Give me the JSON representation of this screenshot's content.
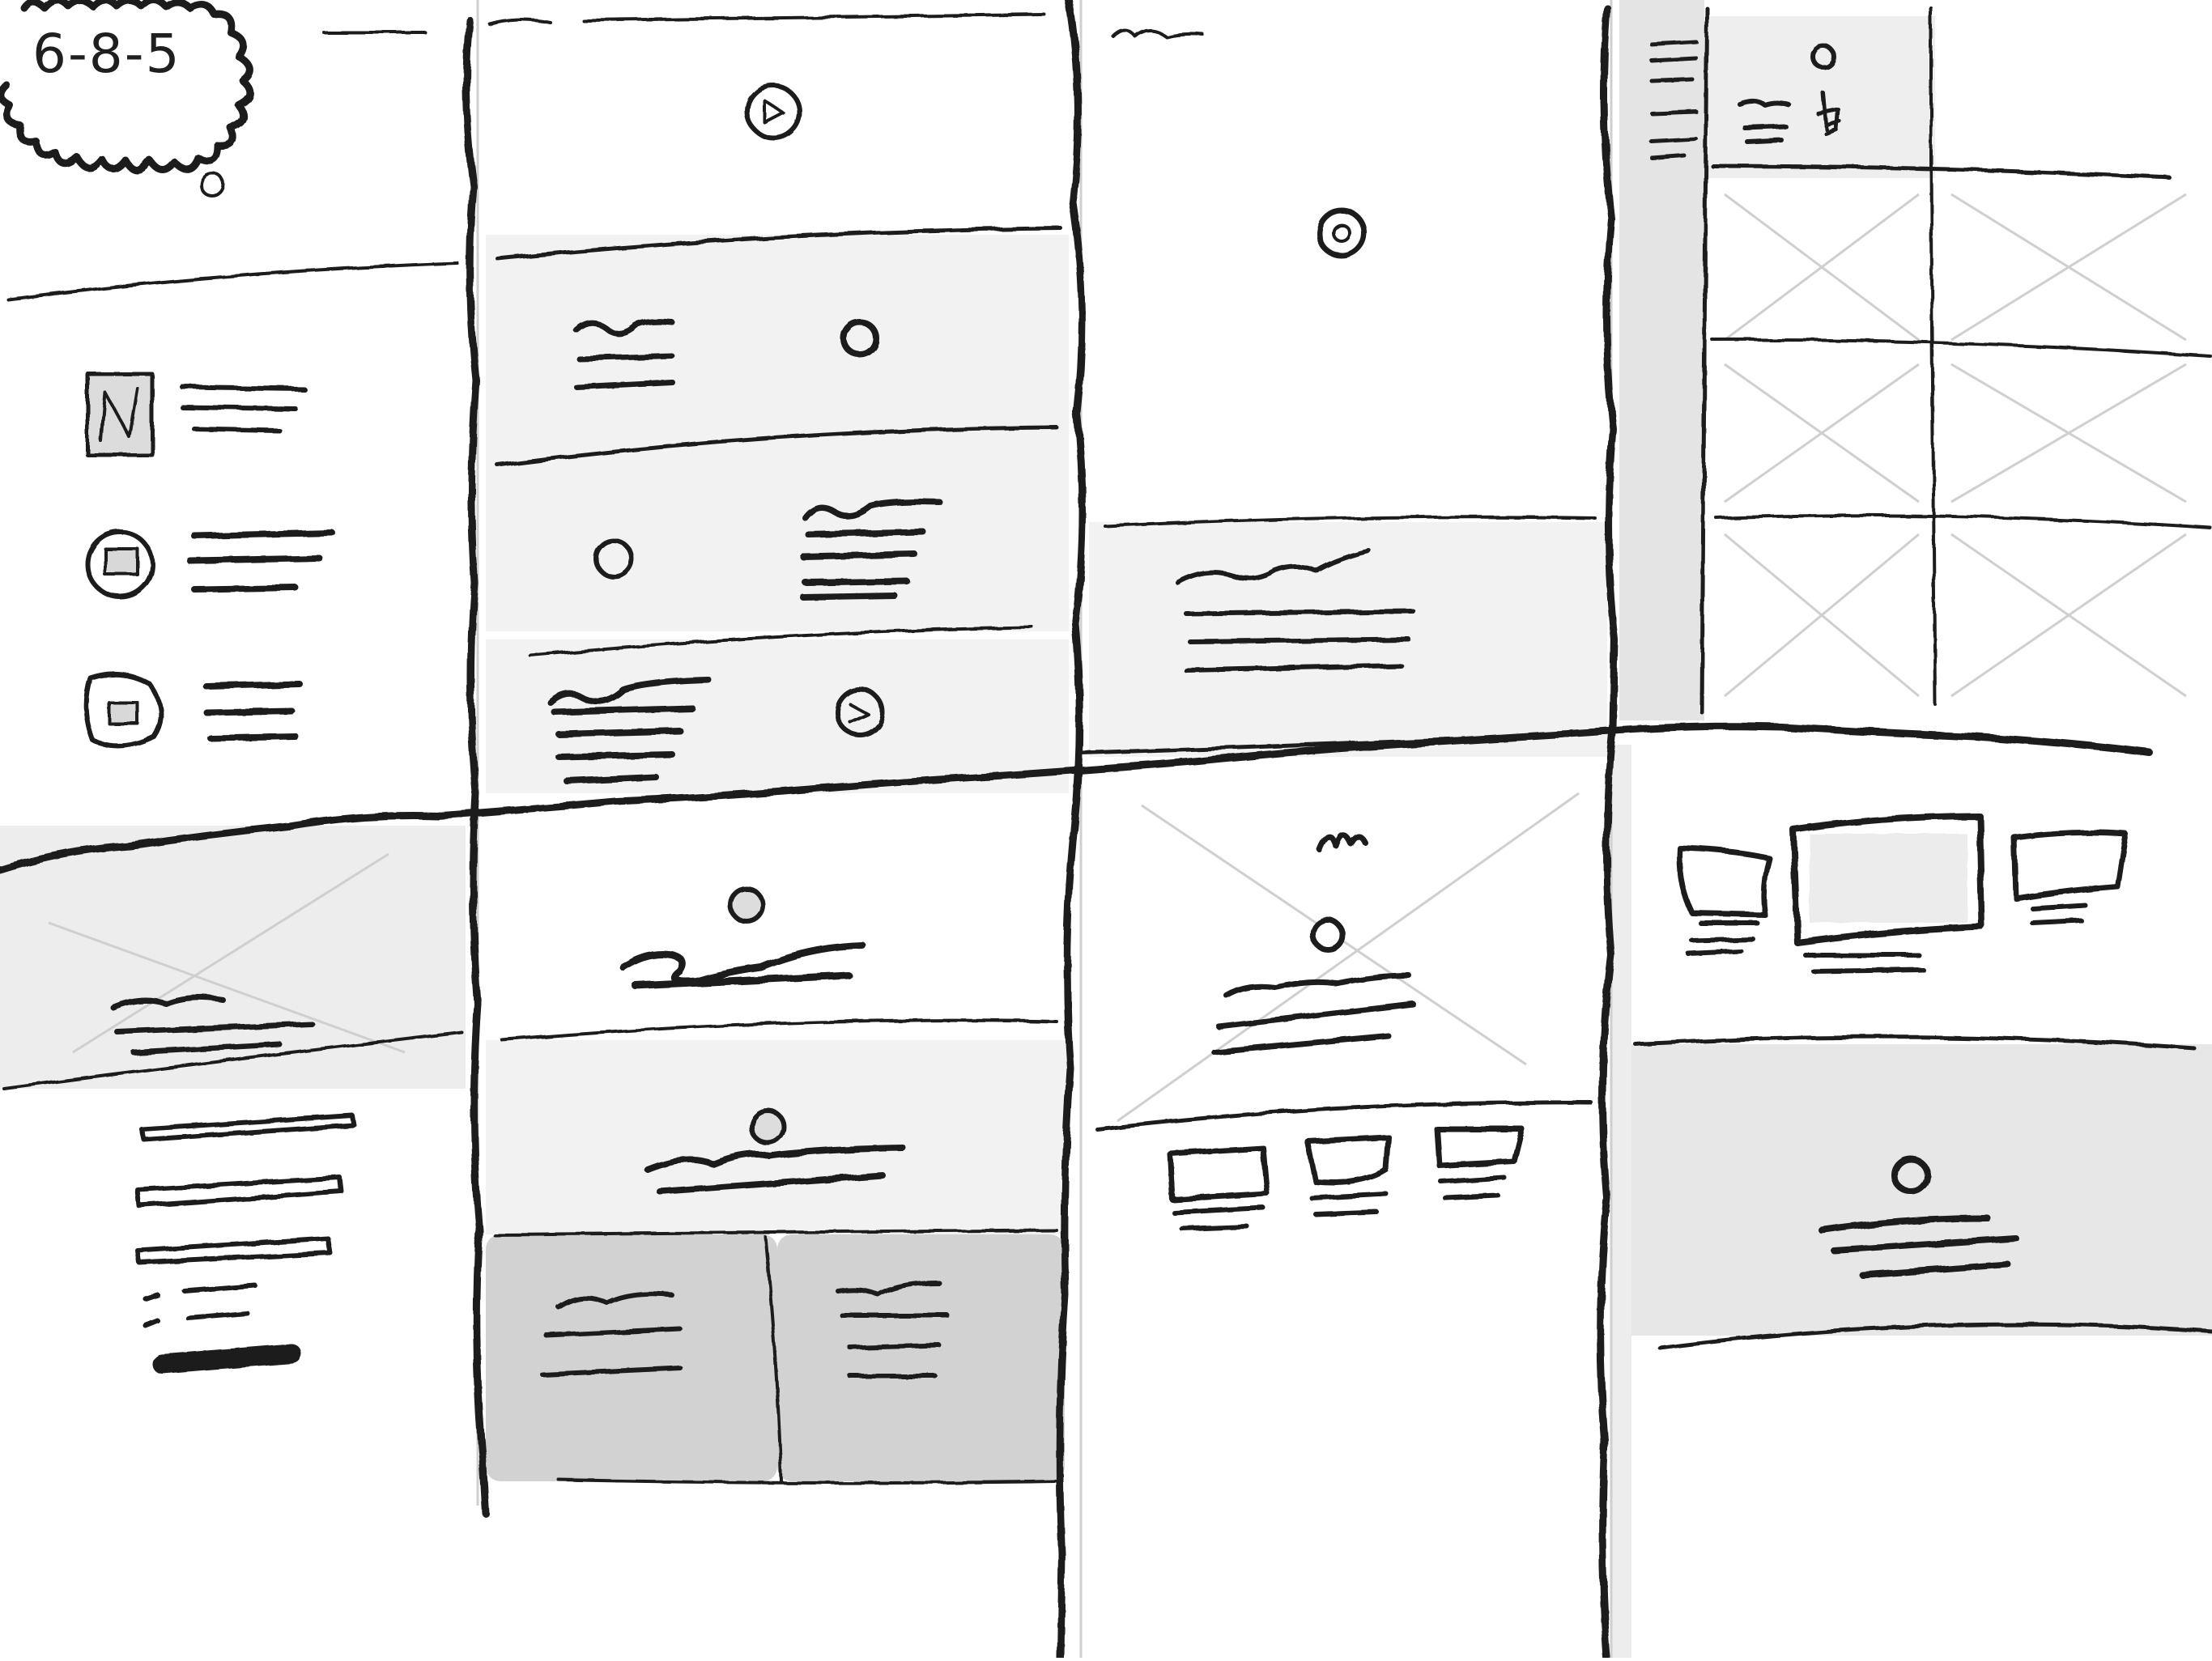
{
  "badge": {
    "text": "6-8-5"
  },
  "colors": {
    "ink": "#1f1f1f",
    "light": "#f1f2f1",
    "mid": "#e7e7e7",
    "dark": "#d2d2d2",
    "sidebar": "#e4e4e4"
  },
  "panels": [
    {
      "id": "panel-1",
      "description_key": "icon-list"
    },
    {
      "id": "panel-2",
      "description_key": "alternating-features"
    },
    {
      "id": "panel-3",
      "description_key": "hero-with-text"
    },
    {
      "id": "panel-4",
      "description_key": "sidebar-grid"
    },
    {
      "id": "panel-5",
      "description_key": "hero-form"
    },
    {
      "id": "panel-6",
      "description_key": "stacked-sections-two-cards"
    },
    {
      "id": "panel-7",
      "description_key": "hero-three-cards"
    },
    {
      "id": "panel-8",
      "description_key": "device-showcase"
    }
  ]
}
